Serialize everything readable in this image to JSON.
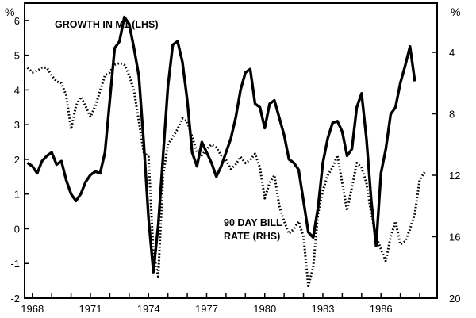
{
  "chart_data": {
    "type": "line",
    "title": "",
    "x_ticks": [
      "1968",
      "1971",
      "1974",
      "1977",
      "1980",
      "1983",
      "1986"
    ],
    "x_range": [
      1967.6,
      1988.9
    ],
    "left_axis": {
      "unit": "%",
      "range": [
        -2,
        6.5
      ],
      "ticks": [
        "6",
        "5",
        "4",
        "3",
        "2",
        "1",
        "0",
        "-1",
        "-2"
      ]
    },
    "right_axis": {
      "unit": "%",
      "range_top_to_bottom": [
        0.8,
        20
      ],
      "inverted": true,
      "ticks": [
        "4",
        "8",
        "12",
        "16",
        "20"
      ]
    },
    "annotations": {
      "m1_label": "GROWTH IN M1 (LHS)",
      "bill_label_line1": "90 DAY BILL",
      "bill_label_line2": "RATE (RHS)"
    },
    "series": [
      {
        "name": "GROWTH IN M1 (LHS)",
        "axis": "left",
        "style": "solid",
        "color": "#000000",
        "points": [
          [
            1967.75,
            1.9
          ],
          [
            1968.0,
            1.8
          ],
          [
            1968.25,
            1.6
          ],
          [
            1968.5,
            1.95
          ],
          [
            1968.75,
            2.1
          ],
          [
            1969.0,
            2.2
          ],
          [
            1969.25,
            1.85
          ],
          [
            1969.5,
            1.95
          ],
          [
            1969.75,
            1.4
          ],
          [
            1970.0,
            1.0
          ],
          [
            1970.25,
            0.8
          ],
          [
            1970.5,
            1.0
          ],
          [
            1970.75,
            1.35
          ],
          [
            1971.0,
            1.55
          ],
          [
            1971.25,
            1.65
          ],
          [
            1971.5,
            1.6
          ],
          [
            1971.75,
            2.2
          ],
          [
            1972.0,
            3.7
          ],
          [
            1972.25,
            5.2
          ],
          [
            1972.5,
            5.4
          ],
          [
            1972.75,
            6.1
          ],
          [
            1973.0,
            5.9
          ],
          [
            1973.25,
            5.2
          ],
          [
            1973.5,
            4.4
          ],
          [
            1973.75,
            2.5
          ],
          [
            1974.0,
            0.3
          ],
          [
            1974.25,
            -1.25
          ],
          [
            1974.5,
            0.1
          ],
          [
            1974.75,
            2.1
          ],
          [
            1975.0,
            4.1
          ],
          [
            1975.25,
            5.3
          ],
          [
            1975.5,
            5.4
          ],
          [
            1975.75,
            4.8
          ],
          [
            1976.0,
            3.7
          ],
          [
            1976.25,
            2.2
          ],
          [
            1976.5,
            1.8
          ],
          [
            1976.75,
            2.5
          ],
          [
            1977.0,
            2.2
          ],
          [
            1977.25,
            1.9
          ],
          [
            1977.5,
            1.5
          ],
          [
            1977.75,
            1.8
          ],
          [
            1978.0,
            2.2
          ],
          [
            1978.25,
            2.6
          ],
          [
            1978.5,
            3.2
          ],
          [
            1978.75,
            4.0
          ],
          [
            1979.0,
            4.5
          ],
          [
            1979.25,
            4.6
          ],
          [
            1979.5,
            3.6
          ],
          [
            1979.75,
            3.5
          ],
          [
            1980.0,
            2.9
          ],
          [
            1980.25,
            3.6
          ],
          [
            1980.5,
            3.7
          ],
          [
            1980.75,
            3.2
          ],
          [
            1981.0,
            2.7
          ],
          [
            1981.25,
            2.0
          ],
          [
            1981.5,
            1.9
          ],
          [
            1981.75,
            1.7
          ],
          [
            1982.0,
            0.8
          ],
          [
            1982.25,
            -0.1
          ],
          [
            1982.5,
            -0.25
          ],
          [
            1982.75,
            0.6
          ],
          [
            1983.0,
            1.9
          ],
          [
            1983.25,
            2.6
          ],
          [
            1983.5,
            3.05
          ],
          [
            1983.75,
            3.1
          ],
          [
            1984.0,
            2.8
          ],
          [
            1984.25,
            2.1
          ],
          [
            1984.5,
            2.3
          ],
          [
            1984.75,
            3.5
          ],
          [
            1985.0,
            3.9
          ],
          [
            1985.25,
            2.6
          ],
          [
            1985.5,
            0.8
          ],
          [
            1985.75,
            -0.5
          ],
          [
            1986.0,
            1.6
          ],
          [
            1986.25,
            2.3
          ],
          [
            1986.5,
            3.3
          ],
          [
            1986.75,
            3.5
          ],
          [
            1987.0,
            4.2
          ],
          [
            1987.25,
            4.7
          ],
          [
            1987.5,
            5.25
          ],
          [
            1987.75,
            4.25
          ]
        ]
      },
      {
        "name": "90 DAY BILL RATE (RHS)",
        "axis": "right",
        "style": "dotted",
        "color": "#000000",
        "points": [
          [
            1967.75,
            5.0
          ],
          [
            1968.0,
            5.3
          ],
          [
            1968.25,
            5.2
          ],
          [
            1968.5,
            5.0
          ],
          [
            1968.75,
            5.0
          ],
          [
            1969.0,
            5.5
          ],
          [
            1969.25,
            5.9
          ],
          [
            1969.5,
            6.0
          ],
          [
            1969.75,
            6.8
          ],
          [
            1970.0,
            9.0
          ],
          [
            1970.25,
            7.5
          ],
          [
            1970.5,
            6.9
          ],
          [
            1970.75,
            7.5
          ],
          [
            1971.0,
            8.2
          ],
          [
            1971.25,
            7.5
          ],
          [
            1971.5,
            6.5
          ],
          [
            1971.75,
            5.5
          ],
          [
            1972.0,
            5.3
          ],
          [
            1972.25,
            4.8
          ],
          [
            1972.5,
            4.7
          ],
          [
            1972.75,
            4.8
          ],
          [
            1973.0,
            5.5
          ],
          [
            1973.25,
            6.5
          ],
          [
            1973.5,
            8.5
          ],
          [
            1973.75,
            10.5
          ],
          [
            1974.0,
            10.8
          ],
          [
            1974.25,
            17.0
          ],
          [
            1974.5,
            18.6
          ],
          [
            1974.75,
            12.0
          ],
          [
            1975.0,
            10.0
          ],
          [
            1975.25,
            9.5
          ],
          [
            1975.5,
            9.0
          ],
          [
            1975.75,
            8.3
          ],
          [
            1976.0,
            8.5
          ],
          [
            1976.25,
            9.5
          ],
          [
            1976.5,
            10.5
          ],
          [
            1976.75,
            10.7
          ],
          [
            1977.0,
            10.3
          ],
          [
            1977.25,
            10.0
          ],
          [
            1977.5,
            10.2
          ],
          [
            1977.75,
            10.7
          ],
          [
            1978.0,
            11.0
          ],
          [
            1978.25,
            11.6
          ],
          [
            1978.5,
            11.3
          ],
          [
            1978.75,
            10.8
          ],
          [
            1979.0,
            11.2
          ],
          [
            1979.25,
            11.0
          ],
          [
            1979.5,
            10.6
          ],
          [
            1979.75,
            11.5
          ],
          [
            1980.0,
            13.5
          ],
          [
            1980.25,
            12.5
          ],
          [
            1980.5,
            12.0
          ],
          [
            1980.75,
            14.0
          ],
          [
            1981.0,
            15.0
          ],
          [
            1981.25,
            15.8
          ],
          [
            1981.5,
            15.5
          ],
          [
            1981.75,
            15.0
          ],
          [
            1982.0,
            16.0
          ],
          [
            1982.25,
            19.2
          ],
          [
            1982.5,
            18.0
          ],
          [
            1982.75,
            14.5
          ],
          [
            1983.0,
            13.0
          ],
          [
            1983.25,
            12.0
          ],
          [
            1983.5,
            11.5
          ],
          [
            1983.75,
            10.7
          ],
          [
            1984.0,
            12.5
          ],
          [
            1984.25,
            14.3
          ],
          [
            1984.5,
            12.8
          ],
          [
            1984.75,
            11.2
          ],
          [
            1985.0,
            11.5
          ],
          [
            1985.25,
            12.5
          ],
          [
            1985.5,
            14.5
          ],
          [
            1985.75,
            16.0
          ],
          [
            1986.0,
            16.8
          ],
          [
            1986.25,
            17.6
          ],
          [
            1986.5,
            16.0
          ],
          [
            1986.75,
            15.0
          ],
          [
            1987.0,
            16.5
          ],
          [
            1987.25,
            16.3
          ],
          [
            1987.5,
            15.5
          ],
          [
            1987.75,
            14.5
          ],
          [
            1988.0,
            12.3
          ],
          [
            1988.25,
            11.8
          ]
        ]
      }
    ]
  }
}
